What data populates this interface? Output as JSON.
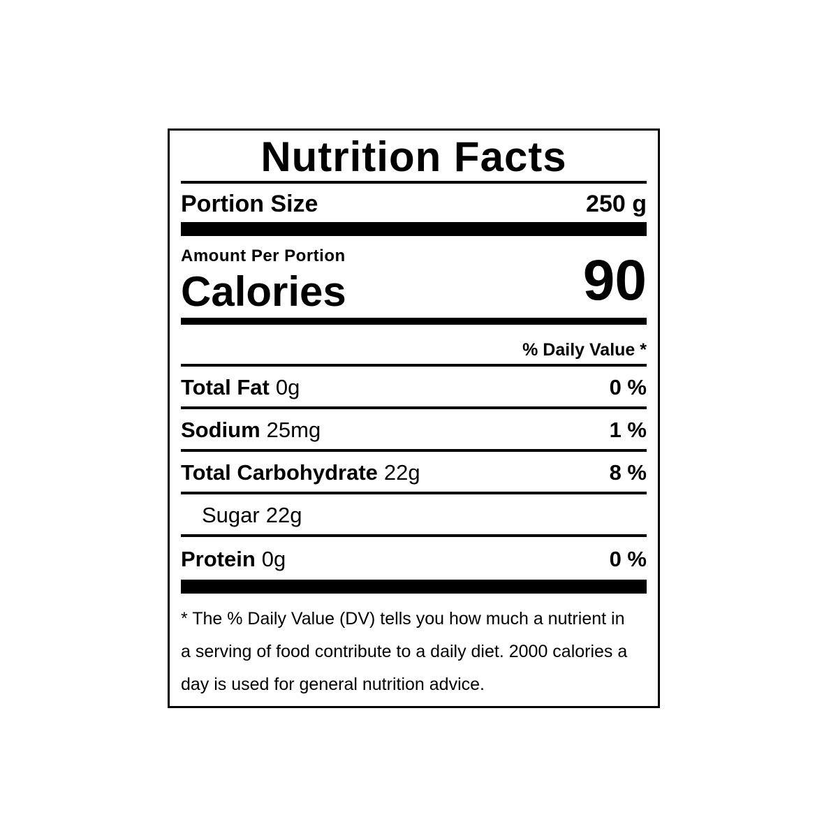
{
  "label": {
    "title": "Nutrition Facts",
    "portion": {
      "name": "Portion Size",
      "value": "250 g"
    },
    "amount_per_portion": "Amount Per Portion",
    "calories_label": "Calories",
    "calories_value": "90",
    "daily_value_header": "% Daily Value *",
    "nutrients": [
      {
        "name": "Total Fat",
        "amount": "0g",
        "daily_value": "0 %",
        "indent": false
      },
      {
        "name": "Sodium",
        "amount": "25mg",
        "daily_value": "1 %",
        "indent": false
      },
      {
        "name": "Total Carbohydrate",
        "amount": "22g",
        "daily_value": "8 %",
        "indent": false
      },
      {
        "name": "Sugar",
        "amount": "22g",
        "daily_value": "",
        "indent": true
      },
      {
        "name": "Protein",
        "amount": "0g",
        "daily_value": "0 %",
        "indent": false
      }
    ],
    "footnote_lines": [
      "* The % Daily Value (DV) tells you how much a nutrient in",
      "a serving of food contribute to a daily diet. 2000 calories a",
      "day is used for general nutrition advice."
    ],
    "colors": {
      "text": "#000000",
      "background": "#ffffff",
      "border": "#000000",
      "bar": "#000000"
    }
  }
}
